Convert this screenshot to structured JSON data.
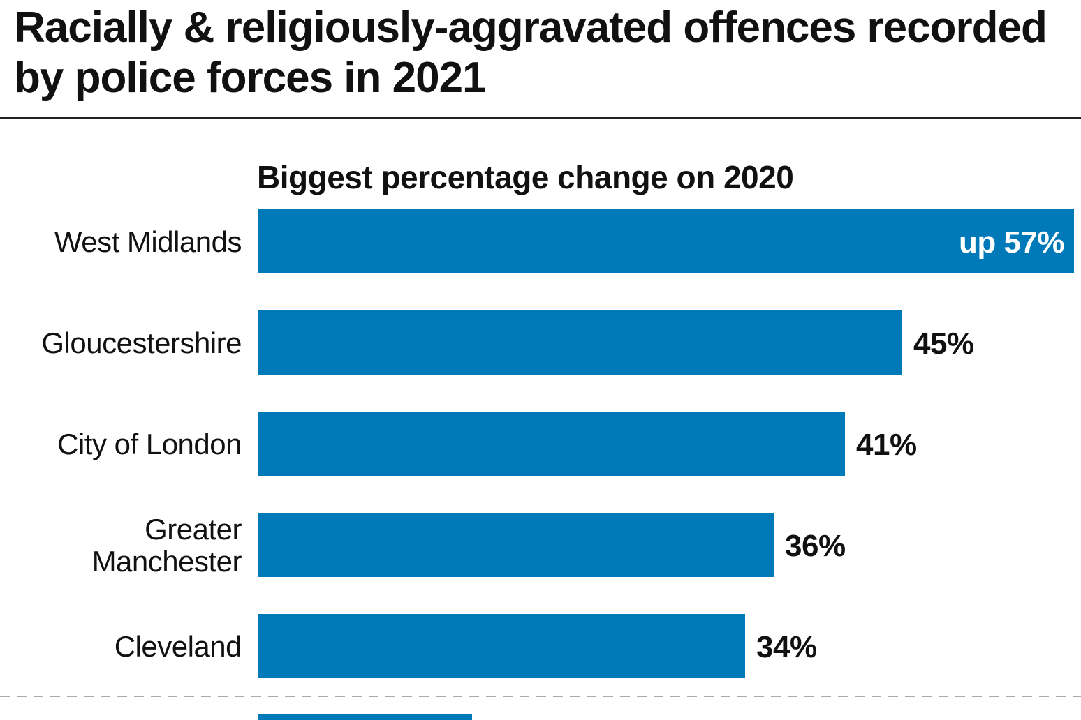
{
  "title": "Racially & religiously-aggravated offences recorded by police forces in 2021",
  "chart_data": {
    "type": "bar",
    "orientation": "horizontal",
    "title": "Biggest percentage change on 2020",
    "categories": [
      [
        "West Midlands"
      ],
      [
        "Gloucestershire"
      ],
      [
        "City of London"
      ],
      [
        "Greater",
        "Manchester"
      ],
      [
        "Cleveland"
      ]
    ],
    "values": [
      57,
      45,
      41,
      36,
      34
    ],
    "value_labels": [
      "up 57%",
      "45%",
      "41%",
      "36%",
      "34%"
    ],
    "bar_color": "#0079b9",
    "xlabel": "",
    "ylabel": "",
    "xlim": [
      0,
      57
    ],
    "grid": false,
    "legend": "none"
  },
  "colors": {
    "bar": "#0079b9",
    "text": "#111111",
    "separator": "#aaaaaa"
  }
}
